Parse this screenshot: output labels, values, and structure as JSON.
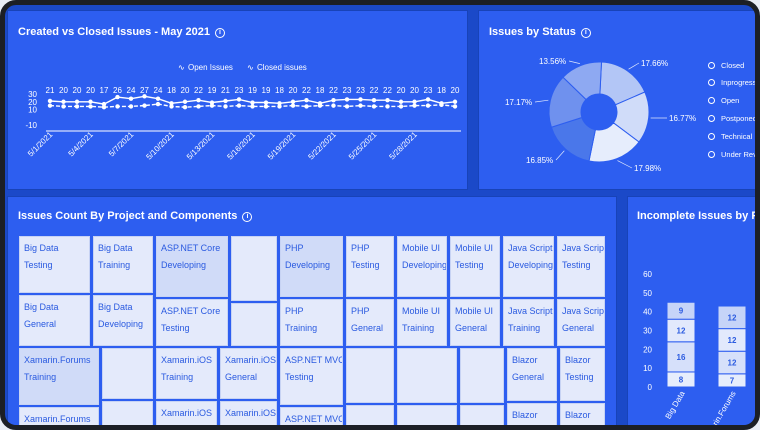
{
  "created_closed": {
    "title": "Created vs Closed Issues - May 2021",
    "legend": [
      "Open Issues",
      "Closed issues"
    ],
    "chart_data": {
      "type": "line",
      "x": [
        "5/1/2021",
        "5/2/2021",
        "5/3/2021",
        "5/4/2021",
        "5/5/2021",
        "5/6/2021",
        "5/7/2021",
        "5/8/2021",
        "5/9/2021",
        "5/10/2021",
        "5/11/2021",
        "5/12/2021",
        "5/13/2021",
        "5/14/2021",
        "5/15/2021",
        "5/16/2021",
        "5/17/2021",
        "5/18/2021",
        "5/19/2021",
        "5/20/2021",
        "5/21/2021",
        "5/22/2021",
        "5/23/2021",
        "5/24/2021",
        "5/25/2021",
        "5/26/2021",
        "5/27/2021",
        "5/28/2021",
        "5/29/2021",
        "5/30/2021",
        "5/31/2021"
      ],
      "x_ticks": [
        "5/1/2021",
        "5/4/2021",
        "5/7/2021",
        "5/10/2021",
        "5/13/2021",
        "5/16/2021",
        "5/19/2021",
        "5/22/2021",
        "5/25/2021",
        "5/28/2021"
      ],
      "series": [
        {
          "name": "Open Issues",
          "values": [
            21,
            20,
            20,
            20,
            17,
            26,
            24,
            27,
            24,
            18,
            20,
            22,
            19,
            21,
            23,
            19,
            19,
            18,
            20,
            22,
            18,
            22,
            23,
            23,
            22,
            22,
            20,
            20,
            23,
            18,
            20
          ]
        },
        {
          "name": "Closed issues",
          "values": [
            15,
            14,
            14,
            14,
            13,
            14,
            14,
            15,
            17,
            14,
            13,
            14,
            15,
            14,
            15,
            14,
            14,
            14,
            15,
            14,
            15,
            15,
            14,
            15,
            14,
            14,
            14,
            15,
            15,
            16,
            14
          ]
        }
      ],
      "y_ticks": [
        30,
        20,
        10,
        -10
      ],
      "ylim": [
        -10,
        30
      ]
    }
  },
  "status": {
    "title": "Issues by Status",
    "legend": [
      "Closed",
      "Inprogress",
      "Open",
      "Postponed",
      "Technical I...",
      "Under Revi..."
    ],
    "chart_data": {
      "type": "pie",
      "labels": [
        "Closed",
        "Inprogress",
        "Open",
        "Postponed",
        "Technical I...",
        "Under Revi..."
      ],
      "values": [
        17.66,
        16.77,
        17.98,
        16.85,
        17.17,
        13.56
      ],
      "value_labels": [
        "17.66%",
        "16.77%",
        "17.98%",
        "16.85%",
        "17.17%",
        "13.56%"
      ],
      "colors": [
        "#b3c6f6",
        "#d0dcf9",
        "#e6edfc",
        "#4a77ea",
        "#6f91ee",
        "#8ea9f2"
      ]
    }
  },
  "treemap": {
    "title": "Issues Count By Project and Components",
    "tiles": [
      {
        "line1": "Big Data",
        "line2": "Testing"
      },
      {
        "line1": "Big Data",
        "line2": "Training"
      },
      {
        "line1": "ASP.NET Core",
        "line2": "Developing"
      },
      {
        "line1": "PHP",
        "line2": "Developing"
      },
      {
        "line1": "PHP",
        "line2": "Testing"
      },
      {
        "line1": "Mobile UI",
        "line2": "Developing"
      },
      {
        "line1": "Mobile UI",
        "line2": "Testing"
      },
      {
        "line1": "Java Script",
        "line2": "Developing"
      },
      {
        "line1": "Java Script",
        "line2": "Testing"
      },
      {
        "line1": "Big Data",
        "line2": "General"
      },
      {
        "line1": "Big Data",
        "line2": "Developing"
      },
      {
        "line1": "ASP.NET Core",
        "line2": "Testing"
      },
      {
        "line1": "PHP",
        "line2": "Training"
      },
      {
        "line1": "PHP",
        "line2": "General"
      },
      {
        "line1": "Mobile UI",
        "line2": "Training"
      },
      {
        "line1": "Mobile UI",
        "line2": "General"
      },
      {
        "line1": "Java Script",
        "line2": "Training"
      },
      {
        "line1": "Java Script",
        "line2": "General"
      },
      {
        "line1": "Xamarin.Forums",
        "line2": "Training"
      },
      {
        "line1": "Xamarin.iOS",
        "line2": "Training"
      },
      {
        "line1": "Xamarin.iOS",
        "line2": "General"
      },
      {
        "line1": "ASP.NET MVC",
        "line2": "Testing"
      },
      {
        "line1": "Blazor",
        "line2": "General"
      },
      {
        "line1": "Blazor",
        "line2": "Testing"
      },
      {
        "line1": "Xamarin.Forums",
        "line2": ""
      },
      {
        "line1": "Xamarin.iOS",
        "line2": ""
      },
      {
        "line1": "Xamarin.iOS",
        "line2": ""
      },
      {
        "line1": "ASP.NET MVC",
        "line2": ""
      },
      {
        "line1": "Blazor",
        "line2": ""
      },
      {
        "line1": "Blazor",
        "line2": ""
      }
    ]
  },
  "incomplete": {
    "title": "Incomplete Issues by Pr",
    "chart_data": {
      "type": "bar",
      "stacked": true,
      "categories": [
        "Big Data",
        "Xamarin.Forums"
      ],
      "series": [
        {
          "values": [
            8,
            7
          ]
        },
        {
          "values": [
            16,
            12
          ]
        },
        {
          "values": [
            12,
            12
          ]
        },
        {
          "values": [
            9,
            12
          ]
        }
      ],
      "y_ticks": [
        0,
        10,
        20,
        30,
        40,
        50,
        60
      ],
      "ylim": [
        0,
        60
      ]
    }
  }
}
